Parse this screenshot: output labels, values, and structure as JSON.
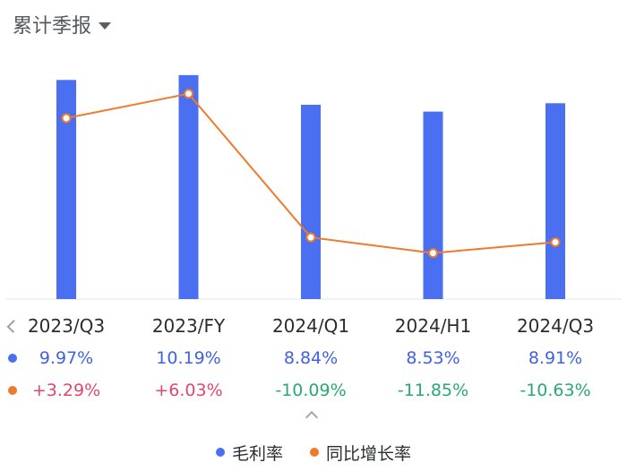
{
  "header": {
    "title": "累计季报",
    "dropdown_icon": "caret-down-icon"
  },
  "colors": {
    "bar": "#4a6ff0",
    "line": "#f07a2c",
    "positive": "#e0486b",
    "negative": "#2aa871",
    "gross_margin_text": "#3f63e0"
  },
  "chart_data": {
    "type": "bar",
    "categories": [
      "2023/Q3",
      "2023/FY",
      "2024/Q1",
      "2024/H1",
      "2024/Q3"
    ],
    "series": [
      {
        "name": "毛利率",
        "type": "bar",
        "values": [
          9.97,
          10.19,
          8.84,
          8.53,
          8.91
        ],
        "labels": [
          "9.97%",
          "10.19%",
          "8.84%",
          "8.53%",
          "8.91%"
        ]
      },
      {
        "name": "同比增长率",
        "type": "line",
        "values": [
          3.29,
          6.03,
          -10.09,
          -11.85,
          -10.63
        ],
        "labels": [
          "+3.29%",
          "+6.03%",
          "-10.09%",
          "-11.85%",
          "-10.63%"
        ]
      }
    ],
    "ylim_bar": [
      0,
      11
    ],
    "ylim_line": [
      -14,
      6.5
    ],
    "legend_position": "bottom"
  },
  "table": {
    "periods": [
      "2023/Q3",
      "2023/FY",
      "2024/Q1",
      "2024/H1",
      "2024/Q3"
    ],
    "gross_margin": [
      "9.97%",
      "10.19%",
      "8.84%",
      "8.53%",
      "8.91%"
    ],
    "yoy_growth": [
      "+3.29%",
      "+6.03%",
      "-10.09%",
      "-11.85%",
      "-10.63%"
    ]
  },
  "legend": {
    "items": [
      "毛利率",
      "同比增长率"
    ]
  }
}
